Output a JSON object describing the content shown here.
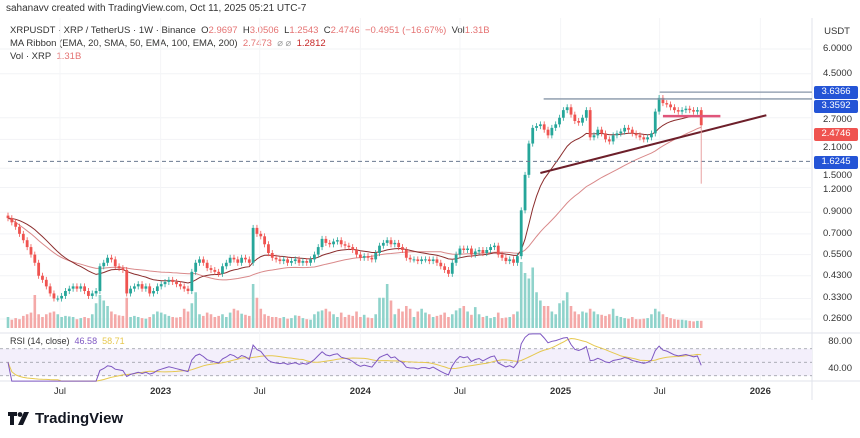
{
  "credit": "sahanavv created with TradingView.com, Oct 11, 2025 05:21 UTC-7",
  "legend": {
    "symbol": "XRPUSDT · XRP / TetherUS · 1W · Binance",
    "o_label": "O",
    "o": "2.9697",
    "h_label": "H",
    "h": "3.0506",
    "l_label": "L",
    "l": "1.2543",
    "c_label": "C",
    "c": "2.4746",
    "change": "−0.4951 (−16.67%)",
    "vol_label": "Vol",
    "vol": "1.31B",
    "ma_ribbon": "MA Ribbon (EMA, 20, SMA, 50, EMA, 100, EMA, 200)",
    "ma_val1": "2.7473",
    "ma_na": "⌀ ⌀",
    "ma_val2": "1.2812",
    "vol_title": "Vol · XRP",
    "vol_value": "1.31B"
  },
  "price_axis": {
    "unit": "USDT",
    "ticks": [
      "6.0000",
      "4.5000",
      "2.7000",
      "2.1000",
      "1.5000",
      "1.2000",
      "0.9000",
      "0.7000",
      "0.5500",
      "0.4300",
      "0.3300",
      "0.2600"
    ],
    "tags": [
      {
        "value": "3.6366",
        "color": "#2454d6"
      },
      {
        "value": "3.3592",
        "color": "#2454d6"
      },
      {
        "value": "2.4746",
        "color": "#ef5350"
      },
      {
        "value": "1.6245",
        "color": "#2454d6"
      }
    ]
  },
  "rsi": {
    "title": "RSI (14, close)",
    "value": "46.58",
    "ma_value": "58.71",
    "ticks": [
      "80.00",
      "40.00"
    ]
  },
  "time_axis": [
    {
      "label": "Jul",
      "date": "2022-07-01",
      "bold": false
    },
    {
      "label": "2023",
      "date": "2023-01-01",
      "bold": true
    },
    {
      "label": "Jul",
      "date": "2023-07-01",
      "bold": false
    },
    {
      "label": "2024",
      "date": "2024-01-01",
      "bold": true
    },
    {
      "label": "Jul",
      "date": "2024-07-01",
      "bold": false
    },
    {
      "label": "2025",
      "date": "2025-01-01",
      "bold": true
    },
    {
      "label": "Jul",
      "date": "2025-07-01",
      "bold": false
    },
    {
      "label": "2026",
      "date": "2026-01-01",
      "bold": true
    }
  ],
  "brand": "TradingView",
  "chart_data": {
    "type": "candlestick",
    "interval": "1W",
    "scale": "log",
    "ylim": [
      0.24,
      6.3
    ],
    "first_week": "2022-03-28",
    "colors": {
      "up": "#26a69a",
      "down": "#ef5350",
      "ema20": "#8b2d2d",
      "slow_ma": "#d9898a",
      "rsi": "#7e57c2",
      "rsi_ma": "#e6c84f",
      "hline": "#8796a8",
      "trendline": "#6d1f2a",
      "marker": "#e0557a"
    },
    "weekly_close": [
      0.84,
      0.8,
      0.76,
      0.7,
      0.65,
      0.6,
      0.55,
      0.5,
      0.43,
      0.41,
      0.38,
      0.35,
      0.33,
      0.33,
      0.34,
      0.36,
      0.37,
      0.38,
      0.37,
      0.38,
      0.36,
      0.34,
      0.35,
      0.36,
      0.48,
      0.5,
      0.53,
      0.52,
      0.48,
      0.47,
      0.46,
      0.35,
      0.37,
      0.38,
      0.39,
      0.37,
      0.38,
      0.35,
      0.36,
      0.38,
      0.39,
      0.4,
      0.41,
      0.4,
      0.39,
      0.38,
      0.37,
      0.36,
      0.45,
      0.5,
      0.52,
      0.5,
      0.47,
      0.46,
      0.45,
      0.44,
      0.48,
      0.5,
      0.53,
      0.52,
      0.5,
      0.53,
      0.52,
      0.5,
      0.75,
      0.7,
      0.68,
      0.62,
      0.56,
      0.53,
      0.52,
      0.51,
      0.52,
      0.5,
      0.51,
      0.52,
      0.5,
      0.51,
      0.5,
      0.52,
      0.55,
      0.6,
      0.66,
      0.63,
      0.62,
      0.64,
      0.65,
      0.62,
      0.61,
      0.6,
      0.58,
      0.55,
      0.53,
      0.54,
      0.53,
      0.52,
      0.56,
      0.61,
      0.63,
      0.65,
      0.62,
      0.63,
      0.6,
      0.58,
      0.53,
      0.52,
      0.52,
      0.51,
      0.52,
      0.52,
      0.51,
      0.52,
      0.5,
      0.48,
      0.46,
      0.44,
      0.5,
      0.55,
      0.59,
      0.58,
      0.59,
      0.55,
      0.57,
      0.58,
      0.56,
      0.58,
      0.6,
      0.61,
      0.55,
      0.53,
      0.51,
      0.52,
      0.5,
      0.54,
      0.92,
      1.39,
      2.0,
      2.4,
      2.45,
      2.5,
      2.35,
      2.2,
      2.4,
      2.5,
      2.7,
      2.95,
      3.05,
      2.8,
      2.6,
      2.55,
      2.7,
      2.95,
      2.15,
      2.2,
      2.35,
      2.25,
      2.1,
      2.05,
      2.2,
      2.25,
      2.3,
      2.4,
      2.35,
      2.25,
      2.2,
      2.15,
      2.1,
      2.15,
      2.25,
      2.9,
      3.4,
      3.2,
      3.15,
      3.05,
      2.95,
      2.9,
      2.95,
      3.0,
      2.95,
      2.9,
      2.95,
      2.4746
    ],
    "weekly_volume_b": [
      2.0,
      1.5,
      1.8,
      1.6,
      2.2,
      2.5,
      2.8,
      6.0,
      2.5,
      2.0,
      2.5,
      2.8,
      3.0,
      2.5,
      2.0,
      2.2,
      2.1,
      2.0,
      1.6,
      1.8,
      2.0,
      1.8,
      2.5,
      4.5,
      6.0,
      5.0,
      4.0,
      3.0,
      2.5,
      2.3,
      2.2,
      5.5,
      2.0,
      2.2,
      2.0,
      1.8,
      1.7,
      2.0,
      2.5,
      3.0,
      2.8,
      2.5,
      2.2,
      2.0,
      1.9,
      2.0,
      3.5,
      3.0,
      4.5,
      6.5,
      2.5,
      2.2,
      2.8,
      2.5,
      2.0,
      2.2,
      2.5,
      2.0,
      2.8,
      3.5,
      3.2,
      2.6,
      2.4,
      2.2,
      8.0,
      5.5,
      3.5,
      2.5,
      2.2,
      2.0,
      2.0,
      1.8,
      2.0,
      1.7,
      1.8,
      2.3,
      2.2,
      1.8,
      1.6,
      1.5,
      2.5,
      3.0,
      3.2,
      3.5,
      3.0,
      2.5,
      2.0,
      2.8,
      2.0,
      2.4,
      2.2,
      3.0,
      2.0,
      2.4,
      1.9,
      1.8,
      2.5,
      5.5,
      5.5,
      8.0,
      5.0,
      2.5,
      3.5,
      3.0,
      4.0,
      3.5,
      2.0,
      3.0,
      3.5,
      2.8,
      2.5,
      2.0,
      2.2,
      2.4,
      2.8,
      2.0,
      2.5,
      3.2,
      3.6,
      4.0,
      3.0,
      2.4,
      3.8,
      2.5,
      2.0,
      2.2,
      1.8,
      2.0,
      2.8,
      1.8,
      1.9,
      2.0,
      2.5,
      3.0,
      12.0,
      10.0,
      9.0,
      11.0,
      6.5,
      5.0,
      4.0,
      4.0,
      3.0,
      2.5,
      4.5,
      5.0,
      6.5,
      4.0,
      3.0,
      2.5,
      3.0,
      2.8,
      3.5,
      3.0,
      2.5,
      2.4,
      2.2,
      2.5,
      3.5,
      2.2,
      2.0,
      1.8,
      1.7,
      2.0,
      1.6,
      1.6,
      1.7,
      1.8,
      2.5,
      3.5,
      3.0,
      2.5,
      2.0,
      1.8,
      1.6,
      1.5,
      1.5,
      1.4,
      1.3,
      1.2,
      1.3,
      1.31
    ],
    "horizontal_lines": [
      {
        "price": 3.6366,
        "from": "2025-07-01"
      },
      {
        "price": 3.3592,
        "from": "2024-12-01"
      },
      {
        "price": 1.6245,
        "from": "2022-03-28",
        "dashed": true
      }
    ],
    "trendline": {
      "from": {
        "date": "2024-11-25",
        "price": 1.42
      },
      "to": {
        "date": "2026-01-12",
        "price": 2.78
      }
    },
    "support_marker": {
      "price": 2.75,
      "from": "2025-07-07",
      "to": "2025-10-20"
    }
  }
}
